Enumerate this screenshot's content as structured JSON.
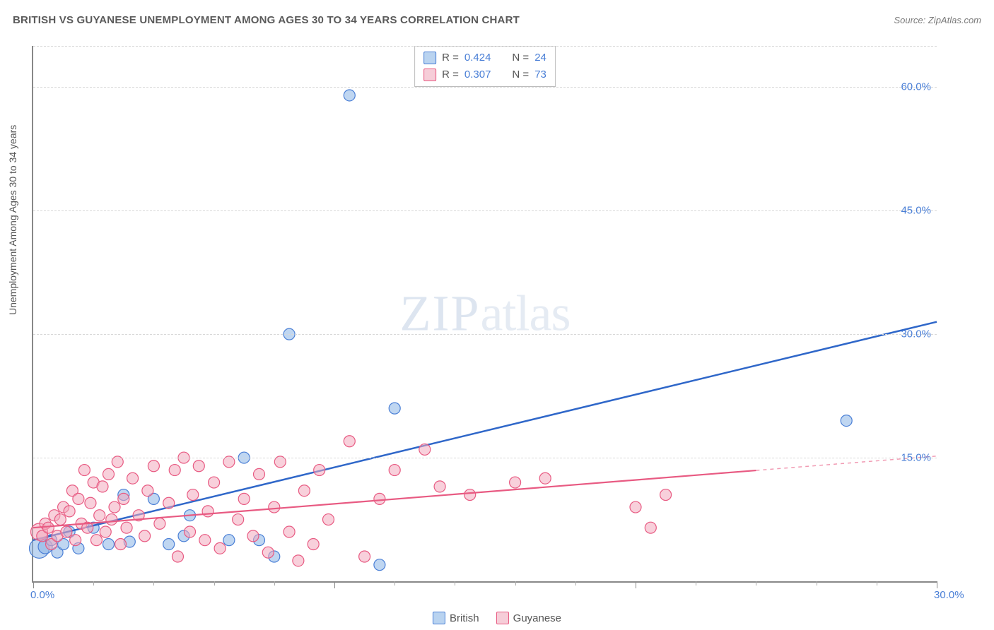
{
  "header": {
    "title": "BRITISH VS GUYANESE UNEMPLOYMENT AMONG AGES 30 TO 34 YEARS CORRELATION CHART",
    "source": "Source: ZipAtlas.com"
  },
  "chart": {
    "type": "scatter",
    "ylabel": "Unemployment Among Ages 30 to 34 years",
    "watermark": {
      "part1": "ZIP",
      "part2": "atlas"
    },
    "background_color": "#ffffff",
    "grid_color": "#d8d8d8",
    "axis_color": "#888888",
    "label_color": "#4a7fd6",
    "text_color": "#555555",
    "xlim": [
      0,
      30
    ],
    "ylim": [
      0,
      65
    ],
    "x_ticks_major": [
      0,
      10,
      20,
      30
    ],
    "x_ticks_minor": [
      2,
      4,
      6,
      8,
      12,
      14,
      16,
      18,
      22,
      24,
      26,
      28
    ],
    "x_tick_labels": [
      {
        "value": 0,
        "label": "0.0%"
      },
      {
        "value": 30,
        "label": "30.0%"
      }
    ],
    "y_gridlines": [
      15,
      30,
      45,
      60,
      65
    ],
    "y_tick_labels": [
      {
        "value": 15,
        "label": "15.0%"
      },
      {
        "value": 30,
        "label": "30.0%"
      },
      {
        "value": 45,
        "label": "45.0%"
      },
      {
        "value": 60,
        "label": "60.0%"
      }
    ],
    "stats_box": {
      "rows": [
        {
          "swatch_fill": "#b9d3f0",
          "swatch_border": "#4a7fd6",
          "r_label": "R =",
          "r_value": "0.424",
          "n_label": "N =",
          "n_value": "24"
        },
        {
          "swatch_fill": "#f6cdd8",
          "swatch_border": "#e85a82",
          "r_label": "R =",
          "r_value": "0.307",
          "n_label": "N =",
          "n_value": "73"
        }
      ]
    },
    "series_legend": [
      {
        "swatch_fill": "#b9d3f0",
        "swatch_border": "#4a7fd6",
        "label": "British"
      },
      {
        "swatch_fill": "#f6cdd8",
        "swatch_border": "#e85a82",
        "label": "Guyanese"
      }
    ],
    "series": [
      {
        "name": "British",
        "marker_fill": "rgba(138,180,230,0.55)",
        "marker_stroke": "#4a7fd6",
        "marker_radius_default": 8,
        "trend_color": "#2f67c9",
        "trend_width": 2.5,
        "trend": {
          "x1": 0,
          "y1": 5.0,
          "x2": 30,
          "y2": 31.5,
          "solid_until_x": 30
        },
        "points": [
          {
            "x": 0.2,
            "y": 4.0,
            "r": 14
          },
          {
            "x": 0.4,
            "y": 4.2,
            "r": 10
          },
          {
            "x": 0.6,
            "y": 5.0
          },
          {
            "x": 0.8,
            "y": 3.5
          },
          {
            "x": 1.0,
            "y": 4.5
          },
          {
            "x": 1.2,
            "y": 6.0
          },
          {
            "x": 1.5,
            "y": 4.0
          },
          {
            "x": 2.0,
            "y": 6.5
          },
          {
            "x": 2.5,
            "y": 4.5
          },
          {
            "x": 3.0,
            "y": 10.5
          },
          {
            "x": 3.2,
            "y": 4.8
          },
          {
            "x": 4.0,
            "y": 10.0
          },
          {
            "x": 4.5,
            "y": 4.5
          },
          {
            "x": 5.0,
            "y": 5.5
          },
          {
            "x": 5.2,
            "y": 8.0
          },
          {
            "x": 6.5,
            "y": 5.0
          },
          {
            "x": 7.0,
            "y": 15.0
          },
          {
            "x": 7.5,
            "y": 5.0
          },
          {
            "x": 8.0,
            "y": 3.0
          },
          {
            "x": 8.5,
            "y": 30.0
          },
          {
            "x": 10.5,
            "y": 59.0
          },
          {
            "x": 11.5,
            "y": 2.0
          },
          {
            "x": 12.0,
            "y": 21.0
          },
          {
            "x": 27.0,
            "y": 19.5
          }
        ]
      },
      {
        "name": "Guyanese",
        "marker_fill": "rgba(243,170,190,0.55)",
        "marker_stroke": "#e85a82",
        "marker_radius_default": 8,
        "trend_color": "#e85a82",
        "trend_width": 2.2,
        "trend": {
          "x1": 0,
          "y1": 6.5,
          "x2": 30,
          "y2": 15.2,
          "solid_until_x": 24
        },
        "points": [
          {
            "x": 0.2,
            "y": 6.0,
            "r": 12
          },
          {
            "x": 0.3,
            "y": 5.5
          },
          {
            "x": 0.4,
            "y": 7.0
          },
          {
            "x": 0.5,
            "y": 6.5
          },
          {
            "x": 0.6,
            "y": 4.5
          },
          {
            "x": 0.7,
            "y": 8.0
          },
          {
            "x": 0.8,
            "y": 5.5
          },
          {
            "x": 0.9,
            "y": 7.5
          },
          {
            "x": 1.0,
            "y": 9.0
          },
          {
            "x": 1.1,
            "y": 6.0
          },
          {
            "x": 1.2,
            "y": 8.5
          },
          {
            "x": 1.3,
            "y": 11.0
          },
          {
            "x": 1.4,
            "y": 5.0
          },
          {
            "x": 1.5,
            "y": 10.0
          },
          {
            "x": 1.6,
            "y": 7.0
          },
          {
            "x": 1.7,
            "y": 13.5
          },
          {
            "x": 1.8,
            "y": 6.5
          },
          {
            "x": 1.9,
            "y": 9.5
          },
          {
            "x": 2.0,
            "y": 12.0
          },
          {
            "x": 2.1,
            "y": 5.0
          },
          {
            "x": 2.2,
            "y": 8.0
          },
          {
            "x": 2.3,
            "y": 11.5
          },
          {
            "x": 2.4,
            "y": 6.0
          },
          {
            "x": 2.5,
            "y": 13.0
          },
          {
            "x": 2.6,
            "y": 7.5
          },
          {
            "x": 2.7,
            "y": 9.0
          },
          {
            "x": 2.8,
            "y": 14.5
          },
          {
            "x": 2.9,
            "y": 4.5
          },
          {
            "x": 3.0,
            "y": 10.0
          },
          {
            "x": 3.1,
            "y": 6.5
          },
          {
            "x": 3.3,
            "y": 12.5
          },
          {
            "x": 3.5,
            "y": 8.0
          },
          {
            "x": 3.7,
            "y": 5.5
          },
          {
            "x": 3.8,
            "y": 11.0
          },
          {
            "x": 4.0,
            "y": 14.0
          },
          {
            "x": 4.2,
            "y": 7.0
          },
          {
            "x": 4.5,
            "y": 9.5
          },
          {
            "x": 4.7,
            "y": 13.5
          },
          {
            "x": 4.8,
            "y": 3.0
          },
          {
            "x": 5.0,
            "y": 15.0
          },
          {
            "x": 5.2,
            "y": 6.0
          },
          {
            "x": 5.3,
            "y": 10.5
          },
          {
            "x": 5.5,
            "y": 14.0
          },
          {
            "x": 5.7,
            "y": 5.0
          },
          {
            "x": 5.8,
            "y": 8.5
          },
          {
            "x": 6.0,
            "y": 12.0
          },
          {
            "x": 6.2,
            "y": 4.0
          },
          {
            "x": 6.5,
            "y": 14.5
          },
          {
            "x": 6.8,
            "y": 7.5
          },
          {
            "x": 7.0,
            "y": 10.0
          },
          {
            "x": 7.3,
            "y": 5.5
          },
          {
            "x": 7.5,
            "y": 13.0
          },
          {
            "x": 7.8,
            "y": 3.5
          },
          {
            "x": 8.0,
            "y": 9.0
          },
          {
            "x": 8.2,
            "y": 14.5
          },
          {
            "x": 8.5,
            "y": 6.0
          },
          {
            "x": 8.8,
            "y": 2.5
          },
          {
            "x": 9.0,
            "y": 11.0
          },
          {
            "x": 9.3,
            "y": 4.5
          },
          {
            "x": 9.5,
            "y": 13.5
          },
          {
            "x": 9.8,
            "y": 7.5
          },
          {
            "x": 10.5,
            "y": 17.0
          },
          {
            "x": 11.0,
            "y": 3.0
          },
          {
            "x": 11.5,
            "y": 10.0
          },
          {
            "x": 12.0,
            "y": 13.5
          },
          {
            "x": 13.0,
            "y": 16.0
          },
          {
            "x": 13.5,
            "y": 11.5
          },
          {
            "x": 14.5,
            "y": 10.5
          },
          {
            "x": 16.0,
            "y": 12.0
          },
          {
            "x": 17.0,
            "y": 12.5
          },
          {
            "x": 20.0,
            "y": 9.0
          },
          {
            "x": 20.5,
            "y": 6.5
          },
          {
            "x": 21.0,
            "y": 10.5
          }
        ]
      }
    ]
  }
}
